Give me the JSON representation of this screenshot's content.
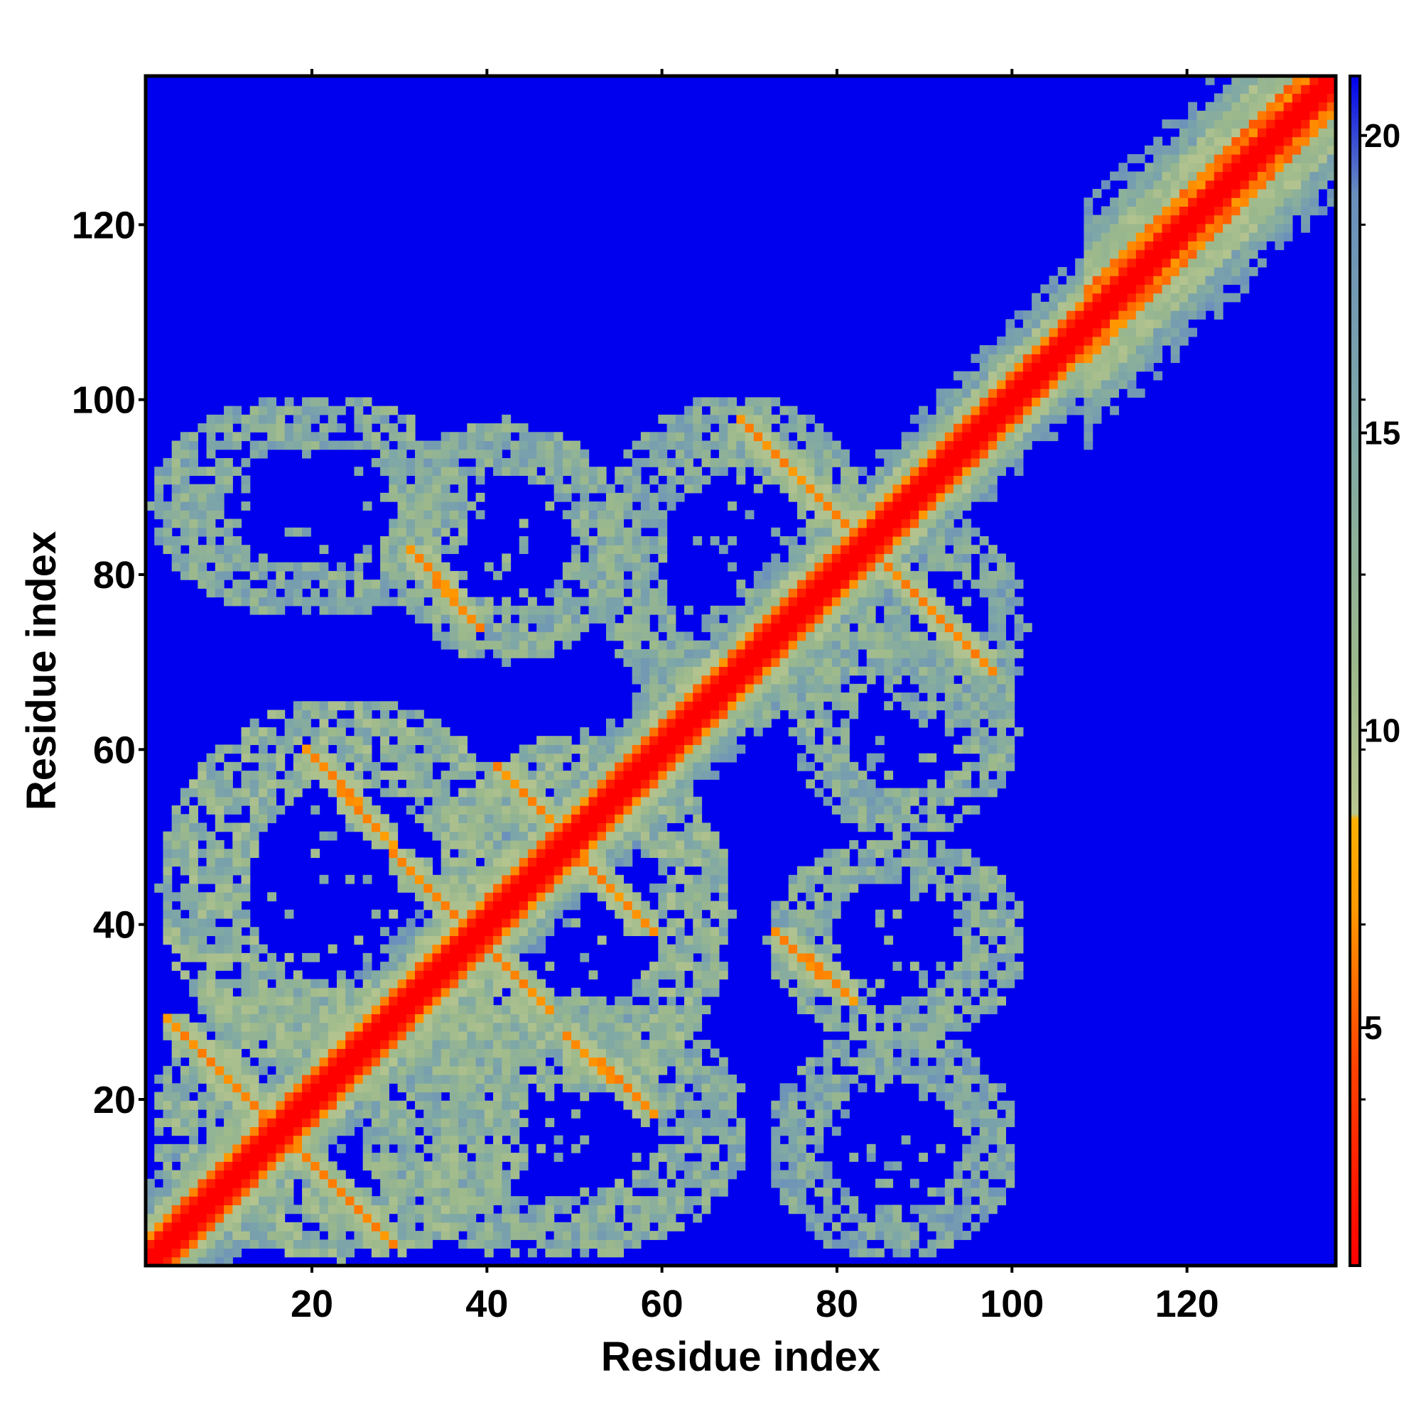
{
  "chart_data": {
    "type": "heatmap",
    "title": "",
    "xlabel": "Residue index",
    "ylabel": "Residue index",
    "xlim": [
      1,
      137
    ],
    "ylim": [
      1,
      137
    ],
    "x_ticks": [
      "20",
      "40",
      "60",
      "80",
      "100",
      "120"
    ],
    "y_ticks": [
      "20",
      "40",
      "60",
      "80",
      "100",
      "120"
    ],
    "x_tick_values": [
      20,
      40,
      60,
      80,
      100,
      120
    ],
    "y_tick_values": [
      20,
      40,
      60,
      80,
      100,
      120
    ],
    "n_residues": 137,
    "colorbar": {
      "ticks": [
        "5",
        "10",
        "15",
        "20"
      ],
      "tick_values": [
        5,
        10,
        15,
        20
      ],
      "range": [
        1,
        21
      ],
      "stops": [
        {
          "value": 1,
          "color": "#ff0000"
        },
        {
          "value": 4.5,
          "color": "#ff4500"
        },
        {
          "value": 7,
          "color": "#ff9900"
        },
        {
          "value": 8.5,
          "color": "#ffb000"
        },
        {
          "value": 8.6,
          "color": "#b9c690"
        },
        {
          "value": 11,
          "color": "#9cb98c"
        },
        {
          "value": 15,
          "color": "#7fa8a6"
        },
        {
          "value": 19,
          "color": "#6a8fbc"
        },
        {
          "value": 21,
          "color": "#0000ee"
        }
      ]
    },
    "background_color": "#0000ee",
    "diagonal_bands": [
      {
        "x_range": [
          1,
          137
        ],
        "offset": 0,
        "value": 1
      }
    ],
    "antidiagonal_features": [
      {
        "from": [
          4,
          28
        ],
        "to": [
          28,
          4
        ],
        "value": 6
      },
      {
        "from": [
          32,
          82
        ],
        "to": [
          38,
          75
        ],
        "value": 6
      },
      {
        "from": [
          20,
          59
        ],
        "to": [
          28,
          50
        ],
        "value": 6
      },
      {
        "from": [
          42,
          57
        ],
        "to": [
          58,
          40
        ],
        "value": 6
      },
      {
        "from": [
          30,
          47
        ],
        "to": [
          46,
          31
        ],
        "value": 6
      },
      {
        "from": [
          50,
          26
        ],
        "to": [
          58,
          19
        ],
        "value": 6
      },
      {
        "from": [
          70,
          97
        ],
        "to": [
          97,
          70
        ],
        "value": 6
      },
      {
        "from": [
          74,
          38
        ],
        "to": [
          81,
          32
        ],
        "value": 6
      }
    ],
    "contact_regions": [
      {
        "x_range": [
          1,
          38
        ],
        "y_range": [
          75,
          101
        ],
        "value": 14
      },
      {
        "x_range": [
          28,
          56
        ],
        "y_range": [
          70,
          98
        ],
        "value": 14
      },
      {
        "x_range": [
          52,
          85
        ],
        "y_range": [
          62,
          101
        ],
        "value": 14
      },
      {
        "x_range": [
          2,
          45
        ],
        "y_range": [
          22,
          66
        ],
        "value": 13
      },
      {
        "x_range": [
          34,
          68
        ],
        "y_range": [
          20,
          62
        ],
        "value": 13
      },
      {
        "x_range": [
          1,
          45
        ],
        "y_range": [
          1,
          34
        ],
        "value": 13
      },
      {
        "x_range": [
          25,
          70
        ],
        "y_range": [
          1,
          32
        ],
        "value": 14
      },
      {
        "x_range": [
          72,
          102
        ],
        "y_range": [
          26,
          50
        ],
        "value": 14
      },
      {
        "x_range": [
          72,
          101
        ],
        "y_range": [
          1,
          28
        ],
        "value": 15
      },
      {
        "x_range": [
          75,
          101
        ],
        "y_range": [
          50,
          74
        ],
        "value": 14
      },
      {
        "x_range": [
          84,
          102
        ],
        "y_range": [
          62,
          86
        ],
        "value": 15
      }
    ]
  }
}
